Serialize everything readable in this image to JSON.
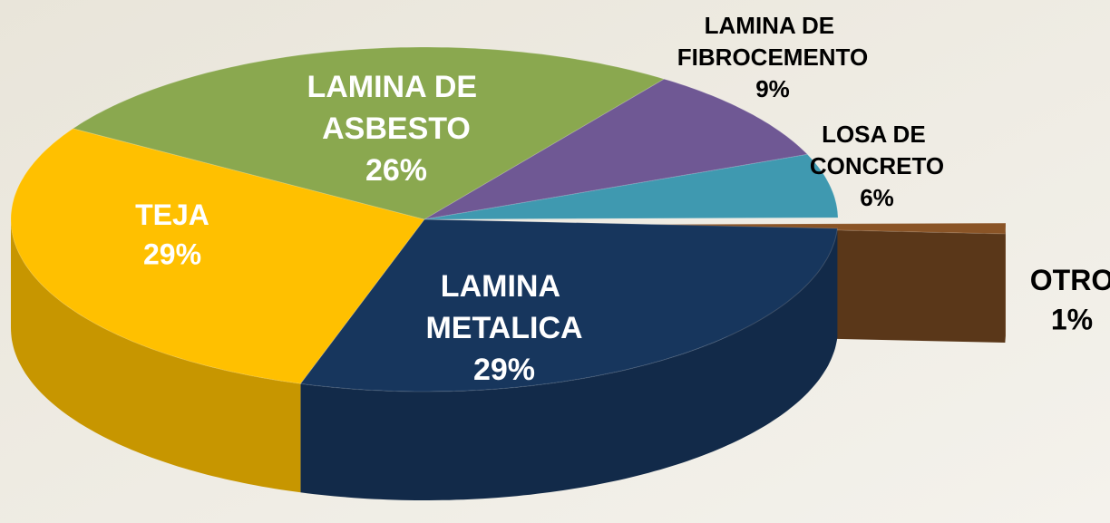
{
  "chart_data": {
    "type": "pie",
    "categories": [
      "OTRO",
      "LAMINA METALICA",
      "TEJA",
      "LAMINA DE ASBESTO",
      "LAMINA DE FIBROCEMENTO",
      "LOSA DE CONCRETO"
    ],
    "values": [
      1,
      29,
      29,
      26,
      9,
      6
    ],
    "value_labels": [
      "1%",
      "29%",
      "29%",
      "26%",
      "9%",
      "6%"
    ],
    "colors": [
      "#8a5426",
      "#17365d",
      "#ffc000",
      "#8aa84f",
      "#6f5894",
      "#3f99b0"
    ]
  }
}
